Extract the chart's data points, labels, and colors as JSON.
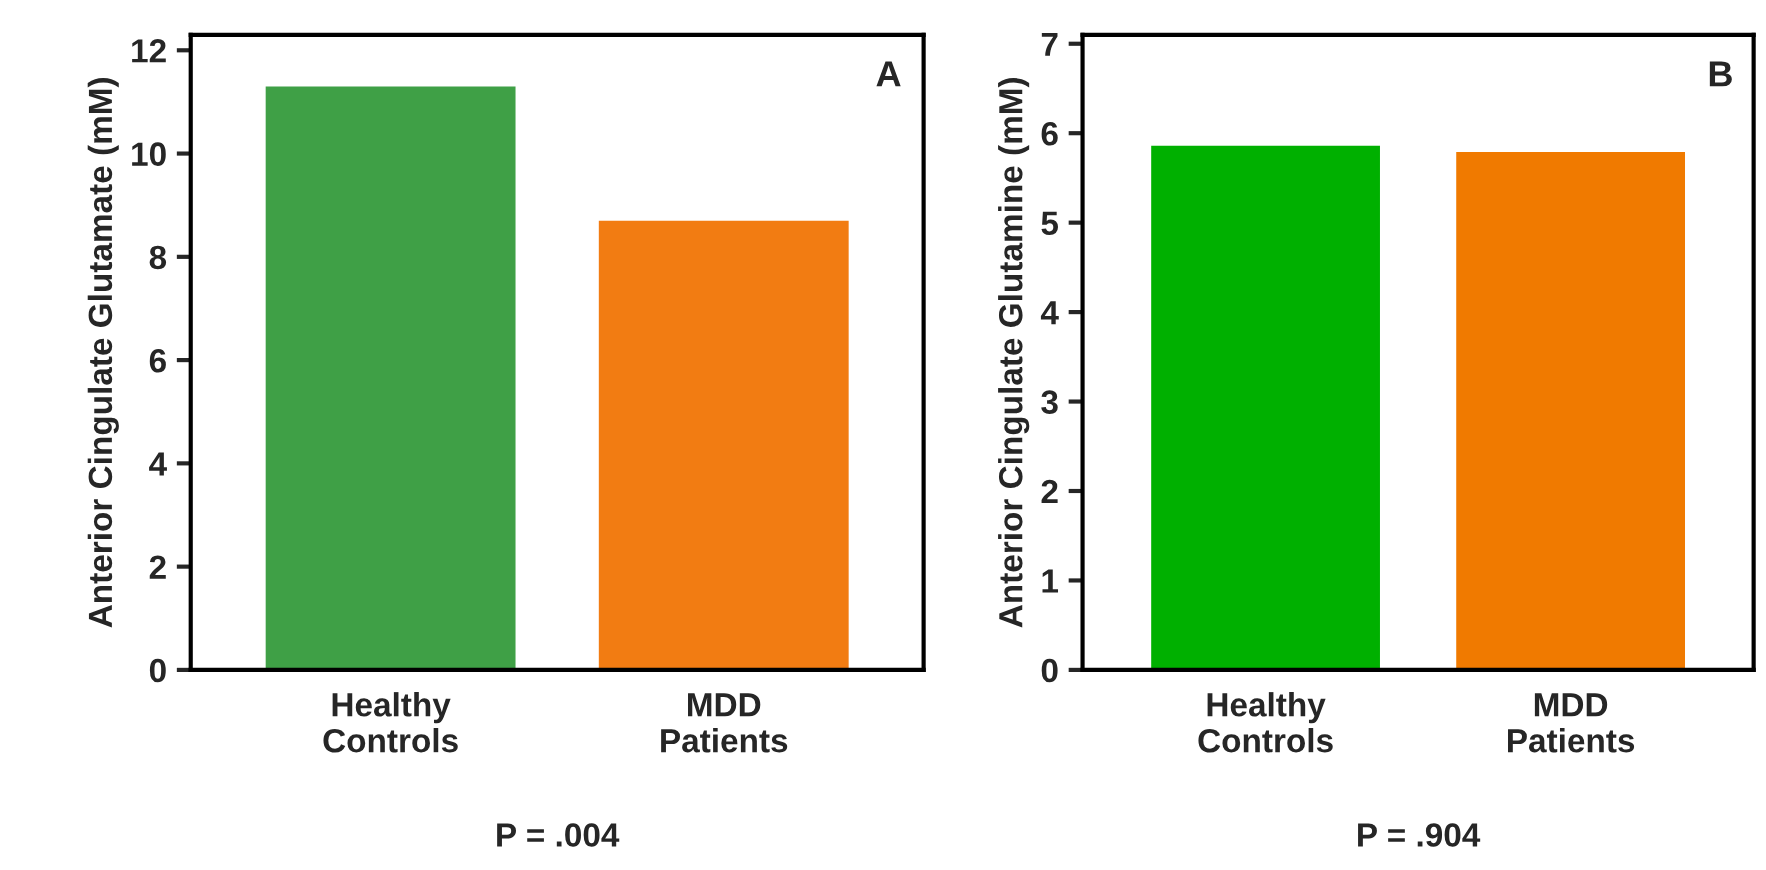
{
  "chart_data": [
    {
      "type": "bar",
      "ylabel": "Anterior Cingulate Glutamate (mM)",
      "categories": [
        "Healthy\nControls",
        "MDD\nPatients"
      ],
      "values": [
        11.3,
        8.7
      ],
      "colors": [
        "#3fa046",
        "#f27c12"
      ],
      "ylim": [
        0,
        12.3
      ],
      "yticks": [
        0,
        2,
        4,
        6,
        8,
        10,
        12
      ],
      "grid": false,
      "annotations": [
        "A",
        "P = .004"
      ]
    },
    {
      "type": "bar",
      "ylabel": "Anterior Cingulate Glutamine (mM)",
      "categories": [
        "Healthy\nControls",
        "MDD\nPatients"
      ],
      "values": [
        5.86,
        5.79
      ],
      "colors": [
        "#00b000",
        "#f07a00"
      ],
      "ylim": [
        0,
        7.1
      ],
      "yticks": [
        0,
        1,
        2,
        3,
        4,
        5,
        6,
        7
      ],
      "grid": false,
      "annotations": [
        "B",
        "P = .904"
      ]
    }
  ]
}
